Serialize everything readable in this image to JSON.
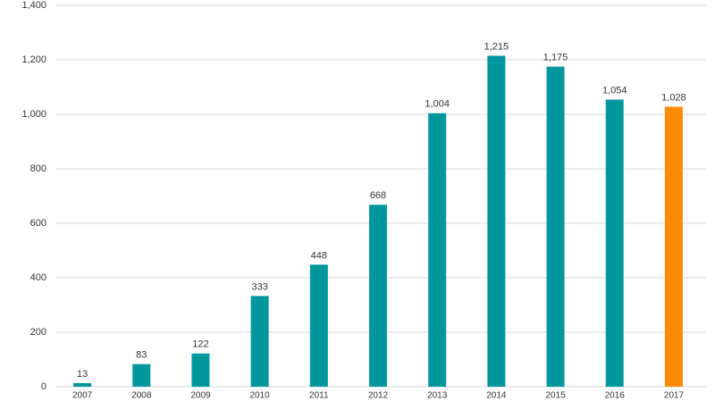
{
  "chart_data": {
    "type": "bar",
    "categories": [
      "2007",
      "2008",
      "2009",
      "2010",
      "2011",
      "2012",
      "2013",
      "2014",
      "2015",
      "2016",
      "2017"
    ],
    "values": [
      13,
      83,
      122,
      333,
      448,
      668,
      1004,
      1215,
      1175,
      1054,
      1028
    ],
    "value_labels": [
      "13",
      "83",
      "122",
      "333",
      "448",
      "668",
      "1,004",
      "1,215",
      "1,175",
      "1,054",
      "1,028"
    ],
    "colors": [
      "#00979c",
      "#00979c",
      "#00979c",
      "#00979c",
      "#00979c",
      "#00979c",
      "#00979c",
      "#00979c",
      "#00979c",
      "#00979c",
      "#ff8c00"
    ],
    "ylim": [
      0,
      1400
    ],
    "yticks": [
      0,
      200,
      400,
      600,
      800,
      {
        "value": 1000,
        "label": "1,000"
      },
      {
        "value": 1200,
        "label": "1,200"
      },
      {
        "value": 1400,
        "label": "1,400"
      }
    ],
    "grid": true
  }
}
